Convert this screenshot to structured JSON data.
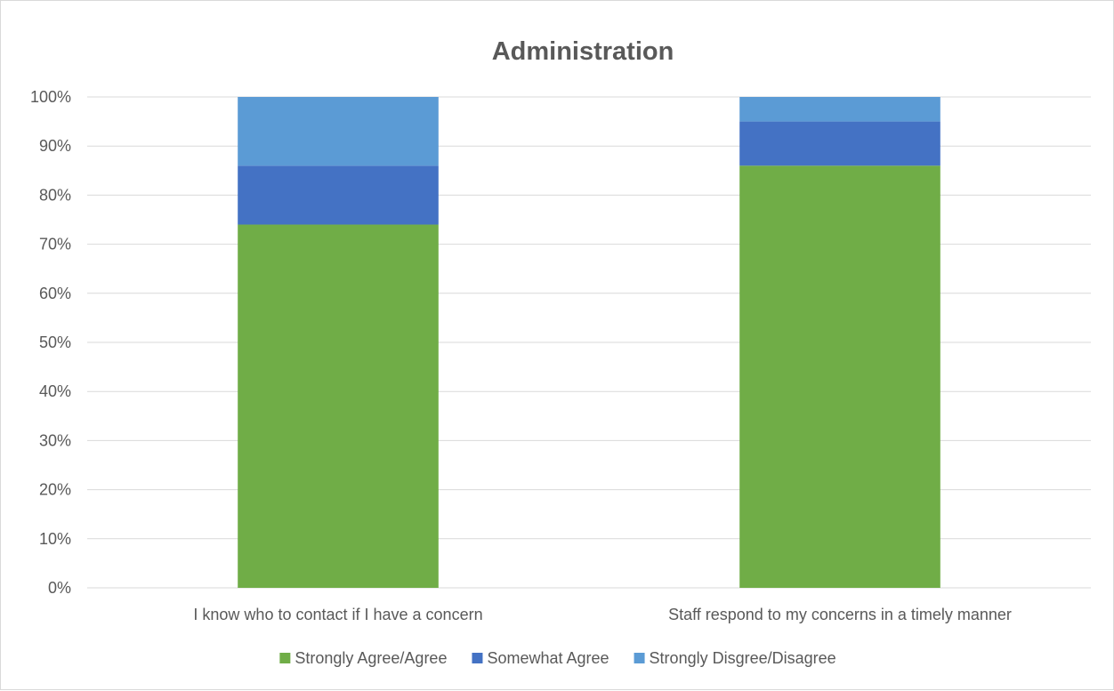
{
  "chart_data": {
    "type": "bar",
    "stacked": true,
    "title": "Administration",
    "xlabel": "",
    "ylabel": "",
    "ylim": [
      0,
      100
    ],
    "y_ticks": [
      "0%",
      "10%",
      "20%",
      "30%",
      "40%",
      "50%",
      "60%",
      "70%",
      "80%",
      "90%",
      "100%"
    ],
    "categories": [
      "I know who to contact if I have a concern",
      "Staff respond to my concerns in a timely manner"
    ],
    "series": [
      {
        "name": "Strongly Agree/Agree",
        "values": [
          74,
          86
        ],
        "color": "#70ad47"
      },
      {
        "name": "Somewhat Agree",
        "values": [
          12,
          9
        ],
        "color": "#4472c4"
      },
      {
        "name": "Strongly Disgree/Disagree",
        "values": [
          14,
          5
        ],
        "color": "#5b9bd5"
      }
    ],
    "grid": true,
    "legend_position": "bottom"
  }
}
